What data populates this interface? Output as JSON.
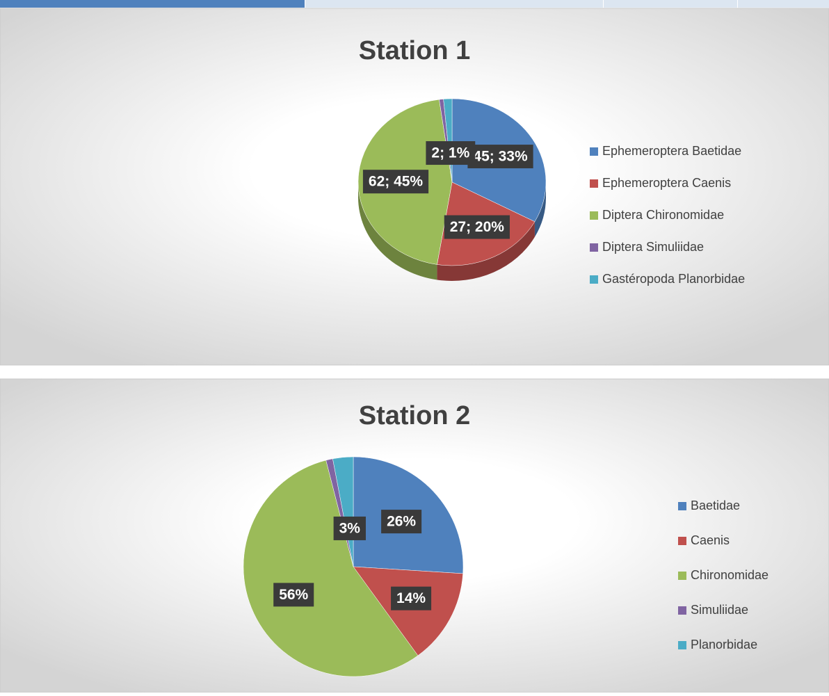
{
  "chart_data": [
    {
      "type": "pie",
      "title": "Station 1",
      "categories": [
        "Ephemeroptera Baetidae",
        "Ephemeroptera Caenis",
        "Diptera Chironomidae",
        "Diptera Simuliidae",
        "Gastéropoda Planorbidae"
      ],
      "values": [
        45,
        27,
        62,
        1,
        2
      ],
      "value_labels": [
        "45; 33%",
        "27; 20%",
        "62; 45%",
        null,
        "2; 1%"
      ],
      "colors": [
        "#4f81bd",
        "#c0504d",
        "#9bbb59",
        "#8064a2",
        "#4bacc6"
      ],
      "legend": "right"
    },
    {
      "type": "pie",
      "title": "Station 2",
      "categories": [
        "Baetidae",
        "Caenis",
        "Chironomidae",
        "Simuliidae",
        "Planorbidae"
      ],
      "values": [
        26,
        14,
        56,
        1,
        3
      ],
      "value_labels": [
        "26%",
        "14%",
        "56%",
        null,
        "3%"
      ],
      "colors": [
        "#4f81bd",
        "#c0504d",
        "#9bbb59",
        "#8064a2",
        "#4bacc6"
      ],
      "legend": "right"
    }
  ]
}
